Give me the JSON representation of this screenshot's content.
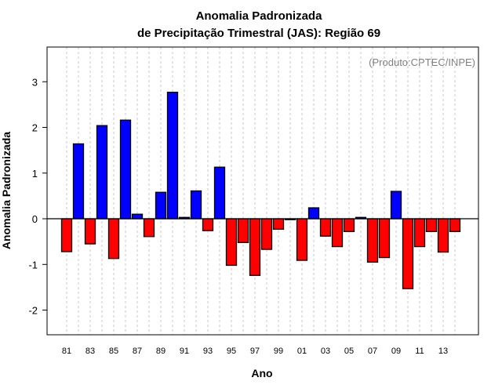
{
  "chart_data": {
    "type": "bar",
    "title": [
      "Anomalia Padronizada",
      "de Precipitação Trimestral (JAS): Região 69"
    ],
    "xlabel": "Ano",
    "ylabel": "Anomalia Padronizada",
    "annotation": "(Produto:CPTEC/INPE)",
    "ylim": [
      -2.54,
      3.76
    ],
    "yticks": [
      -2,
      -1,
      0,
      1,
      2,
      3
    ],
    "ytick_labels": [
      "-2",
      "-1",
      "0",
      "1",
      "2",
      "3"
    ],
    "xtick_labels": [
      "81",
      "83",
      "85",
      "87",
      "89",
      "91",
      "93",
      "95",
      "97",
      "99",
      "01",
      "03",
      "05",
      "07",
      "09",
      "11",
      "13"
    ],
    "categories": [
      "81",
      "82",
      "83",
      "84",
      "85",
      "86",
      "87",
      "88",
      "89",
      "90",
      "91",
      "92",
      "93",
      "94",
      "95",
      "96",
      "97",
      "98",
      "99",
      "00",
      "01",
      "02",
      "03",
      "04",
      "05",
      "06",
      "07",
      "08",
      "09",
      "10",
      "11",
      "12",
      "13",
      "14"
    ],
    "values": [
      -0.72,
      1.64,
      -0.55,
      2.04,
      -0.87,
      2.16,
      0.1,
      -0.39,
      0.58,
      2.77,
      0.03,
      0.61,
      -0.26,
      1.13,
      -1.02,
      -0.52,
      -1.24,
      -0.67,
      -0.23,
      -0.02,
      -0.91,
      0.24,
      -0.38,
      -0.61,
      -0.28,
      0.03,
      -0.95,
      -0.85,
      0.6,
      -1.53,
      -0.61,
      -0.28,
      -0.73,
      -0.28
    ],
    "grid": "vertical dashed",
    "colors": {
      "positive": "#0000ff",
      "negative": "#ff0000",
      "grid": "#c8c8c8",
      "annotation": "#808080"
    }
  }
}
